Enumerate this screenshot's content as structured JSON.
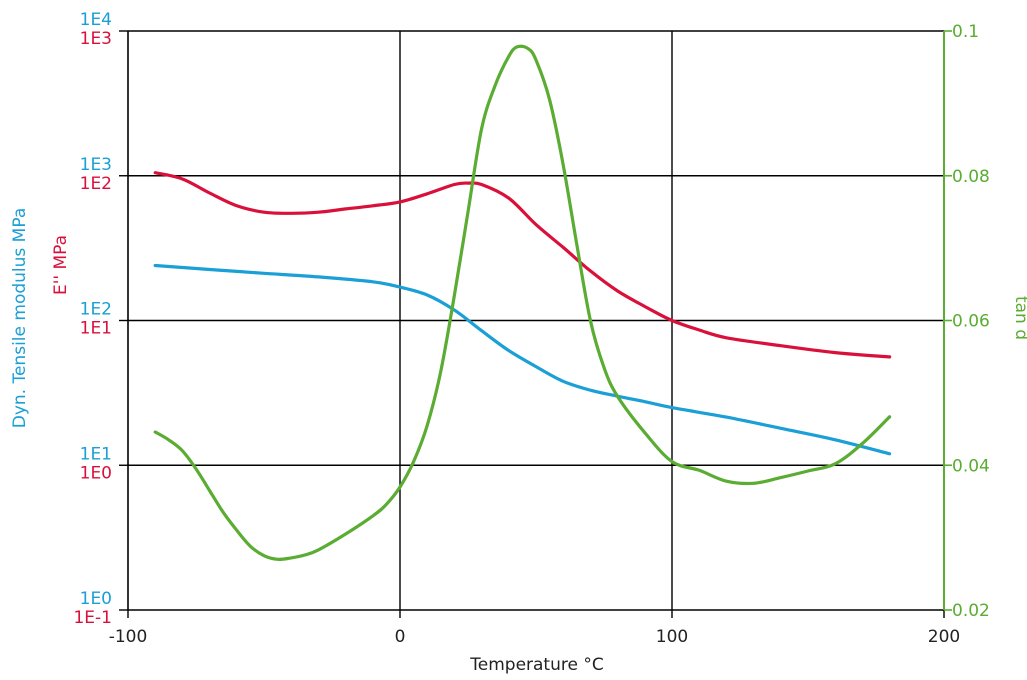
{
  "chart_data": {
    "type": "line",
    "xlabel": "Temperature  °C",
    "xlim": [
      -100,
      200
    ],
    "x_ticks": [
      "-100",
      "0",
      "100",
      "200"
    ],
    "ylabel_modulus": "Dyn. Tensile modulus  MPa",
    "ylabel_loss": "E''  MPa",
    "y2label": "tan d",
    "grid": true,
    "axes": {
      "modulus": {
        "scale": "log",
        "range": [
          1,
          10000
        ],
        "ticks": [
          "1E0",
          "1E1",
          "1E2",
          "1E3",
          "1E4"
        ],
        "color": "#1a9fd6"
      },
      "loss": {
        "scale": "log",
        "range": [
          0.1,
          1000
        ],
        "ticks": [
          "1E-1",
          "1E0",
          "1E1",
          "1E2",
          "1E3"
        ],
        "color": "#d9103a"
      },
      "tan_d": {
        "scale": "linear",
        "range": [
          0.02,
          0.1
        ],
        "ticks": [
          "0.02",
          "0.04",
          "0.06",
          "0.08",
          "0.1"
        ],
        "color": "#5aac32"
      }
    },
    "series": [
      {
        "axis": "modulus",
        "color": "#1a9fd6",
        "x": [
          -90,
          -70,
          -50,
          -30,
          -10,
          0,
          10,
          20,
          30,
          40,
          50,
          60,
          70,
          80,
          90,
          100,
          120,
          140,
          160,
          180
        ],
        "values": [
          240,
          225,
          212,
          200,
          185,
          170,
          150,
          118,
          85,
          62,
          48,
          38,
          33,
          30,
          27.5,
          25,
          21.5,
          18,
          15,
          12
        ]
      },
      {
        "axis": "loss",
        "color": "#d9103a",
        "x": [
          -90,
          -80,
          -70,
          -60,
          -50,
          -40,
          -30,
          -20,
          -10,
          0,
          10,
          20,
          25,
          30,
          40,
          50,
          60,
          70,
          80,
          90,
          100,
          110,
          120,
          140,
          160,
          180
        ],
        "values": [
          105,
          95,
          76,
          62,
          56,
          55,
          56,
          59,
          62,
          66,
          75,
          87,
          89,
          87,
          70,
          46,
          32,
          22,
          16,
          12.5,
          10,
          8.6,
          7.6,
          6.7,
          6,
          5.6
        ]
      },
      {
        "axis": "tan_d",
        "color": "#5aac32",
        "x": [
          -90,
          -85,
          -80,
          -75,
          -70,
          -65,
          -60,
          -55,
          -50,
          -45,
          -40,
          -35,
          -30,
          -20,
          -10,
          -5,
          0,
          5,
          10,
          15,
          20,
          25,
          30,
          35,
          40,
          43,
          47,
          50,
          55,
          60,
          65,
          70,
          75,
          80,
          90,
          100,
          110,
          120,
          130,
          140,
          150,
          160,
          170,
          180
        ],
        "values": [
          0.0446,
          0.0435,
          0.042,
          0.0395,
          0.0365,
          0.0335,
          0.031,
          0.0288,
          0.0275,
          0.027,
          0.0272,
          0.0276,
          0.0283,
          0.0305,
          0.033,
          0.0346,
          0.037,
          0.0405,
          0.0455,
          0.053,
          0.0635,
          0.075,
          0.0865,
          0.0925,
          0.0965,
          0.0978,
          0.0976,
          0.096,
          0.0905,
          0.0815,
          0.0705,
          0.06,
          0.0535,
          0.0495,
          0.0445,
          0.0405,
          0.0393,
          0.0378,
          0.0375,
          0.0383,
          0.0392,
          0.0402,
          0.043,
          0.0467
        ]
      }
    ]
  }
}
